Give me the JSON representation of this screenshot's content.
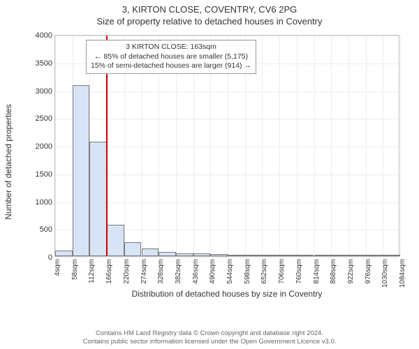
{
  "header": {
    "line1": "3, KIRTON CLOSE, COVENTRY, CV6 2PG",
    "line2": "Size of property relative to detached houses in Coventry"
  },
  "chart": {
    "type": "histogram",
    "ylabel": "Number of detached properties",
    "xlabel": "Distribution of detached houses by size in Coventry",
    "ylim": [
      0,
      4000
    ],
    "yticks": [
      0,
      500,
      1000,
      1500,
      2000,
      2500,
      3000,
      3500,
      4000
    ],
    "xticks": [
      "4sqm",
      "58sqm",
      "112sqm",
      "166sqm",
      "220sqm",
      "274sqm",
      "328sqm",
      "382sqm",
      "436sqm",
      "490sqm",
      "544sqm",
      "598sqm",
      "652sqm",
      "706sqm",
      "760sqm",
      "814sqm",
      "868sqm",
      "922sqm",
      "976sqm",
      "1030sqm",
      "1084sqm"
    ],
    "x_min": 4,
    "x_max": 1084,
    "bars": [
      {
        "x": 4,
        "value": 100
      },
      {
        "x": 58,
        "value": 3080
      },
      {
        "x": 112,
        "value": 2060
      },
      {
        "x": 166,
        "value": 560
      },
      {
        "x": 220,
        "value": 250
      },
      {
        "x": 274,
        "value": 140
      },
      {
        "x": 328,
        "value": 80
      },
      {
        "x": 382,
        "value": 55
      },
      {
        "x": 436,
        "value": 45
      },
      {
        "x": 490,
        "value": 35
      },
      {
        "x": 544,
        "value": 5
      },
      {
        "x": 598,
        "value": 8
      },
      {
        "x": 652,
        "value": 5
      },
      {
        "x": 706,
        "value": 4
      },
      {
        "x": 760,
        "value": 3
      },
      {
        "x": 814,
        "value": 3
      },
      {
        "x": 868,
        "value": 2
      },
      {
        "x": 922,
        "value": 2
      },
      {
        "x": 976,
        "value": 2
      },
      {
        "x": 1030,
        "value": 1
      }
    ],
    "bar_fill": "#d6e4f5",
    "bar_border": "#7a7a7a",
    "bar_width_units": 54,
    "background_color": "#ffffff",
    "grid_color": "#ececec",
    "axis_color": "#bfbfbf",
    "marker": {
      "x_value": 163,
      "color": "#cc0000"
    },
    "annotation": {
      "line1": "3 KIRTON CLOSE: 163sqm",
      "line2": "← 85% of detached houses are smaller (5,175)",
      "line3": "15% of semi-detached houses are larger (914) →"
    }
  },
  "footer": {
    "line1": "Contains HM Land Registry data © Crown copyright and database right 2024.",
    "line2": "Contains public sector information licensed under the Open Government Licence v3.0."
  }
}
